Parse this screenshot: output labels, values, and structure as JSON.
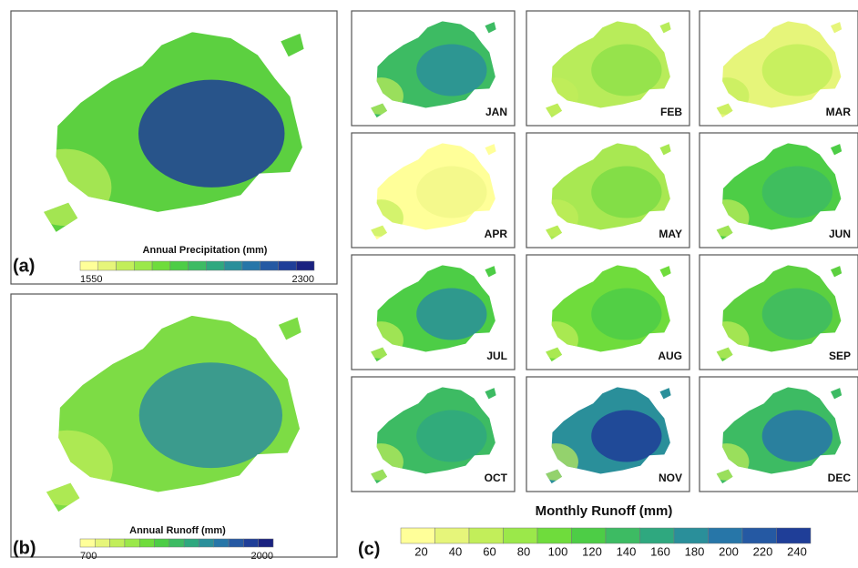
{
  "panel_a": {
    "label": "(a)",
    "title": "Annual Precipitation (mm)",
    "ticks": [
      1550,
      2300
    ],
    "colors": [
      "#5cd040",
      "#1f3e98"
    ]
  },
  "panel_b": {
    "label": "(b)",
    "title": "Annual Runoff (mm)",
    "ticks": [
      700,
      2000
    ],
    "colors": [
      "#7ddc45",
      "#2f8f9a"
    ]
  },
  "panel_c": {
    "label": "(c)",
    "title": "Monthly Runoff (mm)",
    "ticks": [
      20,
      40,
      60,
      80,
      100,
      120,
      140,
      160,
      180,
      200,
      220,
      240
    ],
    "months": [
      {
        "label": "JAN",
        "colors": [
          "#3dbb63",
          "#2a8f9a"
        ]
      },
      {
        "label": "FEB",
        "colors": [
          "#b8ec5a",
          "#8fe24a"
        ]
      },
      {
        "label": "MAR",
        "colors": [
          "#e6f57a",
          "#c2ee5a"
        ]
      },
      {
        "label": "APR",
        "colors": [
          "#ffff99",
          "#f2f88a"
        ]
      },
      {
        "label": "MAY",
        "colors": [
          "#a8e852",
          "#7ddc45"
        ]
      },
      {
        "label": "JUN",
        "colors": [
          "#4dcd46",
          "#3dbb63"
        ]
      },
      {
        "label": "JUL",
        "colors": [
          "#4dcd46",
          "#2a8f9a"
        ]
      },
      {
        "label": "AUG",
        "colors": [
          "#6fdc3c",
          "#4dcd46"
        ]
      },
      {
        "label": "SEP",
        "colors": [
          "#5cd040",
          "#3dbb63"
        ]
      },
      {
        "label": "OCT",
        "colors": [
          "#3dbb63",
          "#2fa87f"
        ]
      },
      {
        "label": "NOV",
        "colors": [
          "#2a8f9a",
          "#1f3e98"
        ]
      },
      {
        "label": "DEC",
        "colors": [
          "#3dbb63",
          "#2776a8"
        ]
      }
    ]
  },
  "colorbar_colors": [
    "#ffff99",
    "#e6f57a",
    "#c2ee5a",
    "#9be84a",
    "#6fdc3c",
    "#4dcd46",
    "#3dbb63",
    "#2fa87f",
    "#2a8f9a",
    "#2776a8",
    "#2559a3",
    "#1f3e98",
    "#1a2280"
  ]
}
